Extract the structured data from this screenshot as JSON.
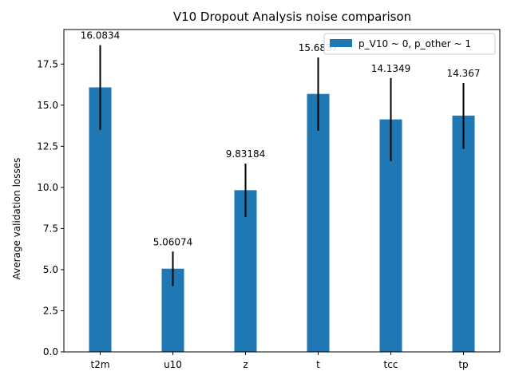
{
  "chart_data": {
    "type": "bar",
    "title": "V10 Dropout Analysis noise comparison",
    "xlabel": "",
    "ylabel": "Average validation losses",
    "categories": [
      "t2m",
      "u10",
      "z",
      "t",
      "tcc",
      "tp"
    ],
    "series": [
      {
        "name": "p_V10 ~ 0, p_other ~ 1",
        "values": [
          16.0834,
          5.06074,
          9.83184,
          15.6837,
          14.1349,
          14.367
        ],
        "error_low": [
          13.5,
          4.0,
          8.2,
          13.45,
          11.6,
          12.35
        ],
        "error_high": [
          18.65,
          6.1,
          11.45,
          17.9,
          16.65,
          16.35
        ],
        "value_labels": [
          "16.0834",
          "5.06074",
          "9.83184",
          "15.6837",
          "14.1349",
          "14.367"
        ],
        "color": "#1f77b4"
      }
    ],
    "error_bar_color": "#000000",
    "ylim": [
      0,
      19.6
    ],
    "yticks": [
      0.0,
      2.5,
      5.0,
      7.5,
      10.0,
      12.5,
      15.0,
      17.5
    ],
    "ytick_labels": [
      "0.0",
      "2.5",
      "5.0",
      "7.5",
      "10.0",
      "12.5",
      "15.0",
      "17.5"
    ],
    "grid": false,
    "legend_position": "top-right"
  }
}
